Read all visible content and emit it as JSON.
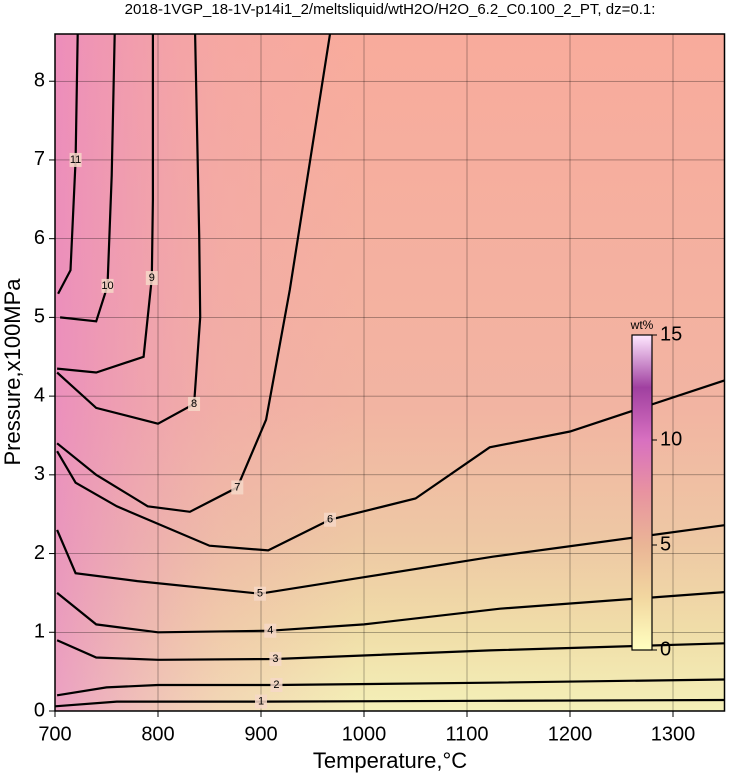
{
  "chart_data": {
    "type": "contour",
    "title": "2018-1VGP_18-1V-p14i1_2/meltsliquid/wtH2O/H2O_6.2_C0.100_2_PT, dz=0.1:",
    "x_label": "Temperature,°C",
    "y_label": "Pressure,x100MPa",
    "xlim": [
      700,
      1350
    ],
    "ylim": [
      0,
      8.6
    ],
    "xticks": [
      700,
      800,
      900,
      1000,
      1100,
      1200,
      1300
    ],
    "yticks": [
      0,
      1,
      2,
      3,
      4,
      5,
      6,
      7,
      8
    ],
    "grid": true,
    "colorbar": {
      "label": "wt%",
      "lim": [
        0,
        15
      ],
      "ticks": [
        0,
        5,
        10,
        15
      ],
      "colors": [
        "#ffffc0",
        "#f2d7a0",
        "#eab596",
        "#e893a0",
        "#d870c0",
        "#a040a0",
        "#ffe8ff"
      ]
    },
    "contours": [
      {
        "level": 1,
        "x": [
          700,
          760,
          900,
          1120,
          1350
        ],
        "y": [
          0.06,
          0.12,
          0.12,
          0.13,
          0.14
        ]
      },
      {
        "level": 2,
        "x": [
          702,
          750,
          800,
          915,
          1122,
          1350
        ],
        "y": [
          0.2,
          0.3,
          0.33,
          0.33,
          0.36,
          0.4
        ]
      },
      {
        "level": 3,
        "x": [
          702,
          740,
          800,
          914,
          1122,
          1350
        ],
        "y": [
          0.9,
          0.68,
          0.65,
          0.66,
          0.77,
          0.86
        ]
      },
      {
        "level": 4,
        "x": [
          702,
          740,
          800,
          909,
          1000,
          1132,
          1350
        ],
        "y": [
          1.5,
          1.1,
          1.0,
          1.02,
          1.1,
          1.3,
          1.51
        ]
      },
      {
        "level": 5,
        "x": [
          702,
          720,
          780,
          899,
          1000,
          1125,
          1350
        ],
        "y": [
          2.3,
          1.75,
          1.65,
          1.49,
          1.7,
          1.96,
          2.36
        ]
      },
      {
        "level": 6,
        "x": [
          702,
          720,
          760,
          850,
          907,
          967,
          1050,
          1122,
          1200,
          1350
        ],
        "y": [
          3.3,
          2.9,
          2.6,
          2.1,
          2.04,
          2.43,
          2.7,
          3.35,
          3.55,
          4.2
        ]
      },
      {
        "level": 7,
        "x": [
          702,
          740,
          790,
          831,
          877,
          905,
          928,
          967
        ],
        "y": [
          3.4,
          3.0,
          2.6,
          2.53,
          2.84,
          3.7,
          5.35,
          8.6
        ]
      },
      {
        "level": 8,
        "x": [
          702,
          740,
          800,
          835,
          841,
          840,
          836
        ],
        "y": [
          4.3,
          3.85,
          3.65,
          3.9,
          5.0,
          6.04,
          8.6
        ]
      },
      {
        "level": 9,
        "x": [
          702,
          740,
          786,
          794,
          795,
          795
        ],
        "y": [
          4.35,
          4.3,
          4.5,
          5.5,
          6.5,
          8.6
        ]
      },
      {
        "level": 10,
        "x": [
          705,
          740,
          751,
          755,
          758
        ],
        "y": [
          5.0,
          4.95,
          5.4,
          6.8,
          8.6
        ]
      },
      {
        "level": 11,
        "x": [
          703,
          715,
          720,
          722
        ],
        "y": [
          5.3,
          5.6,
          7.0,
          8.6
        ]
      }
    ]
  }
}
